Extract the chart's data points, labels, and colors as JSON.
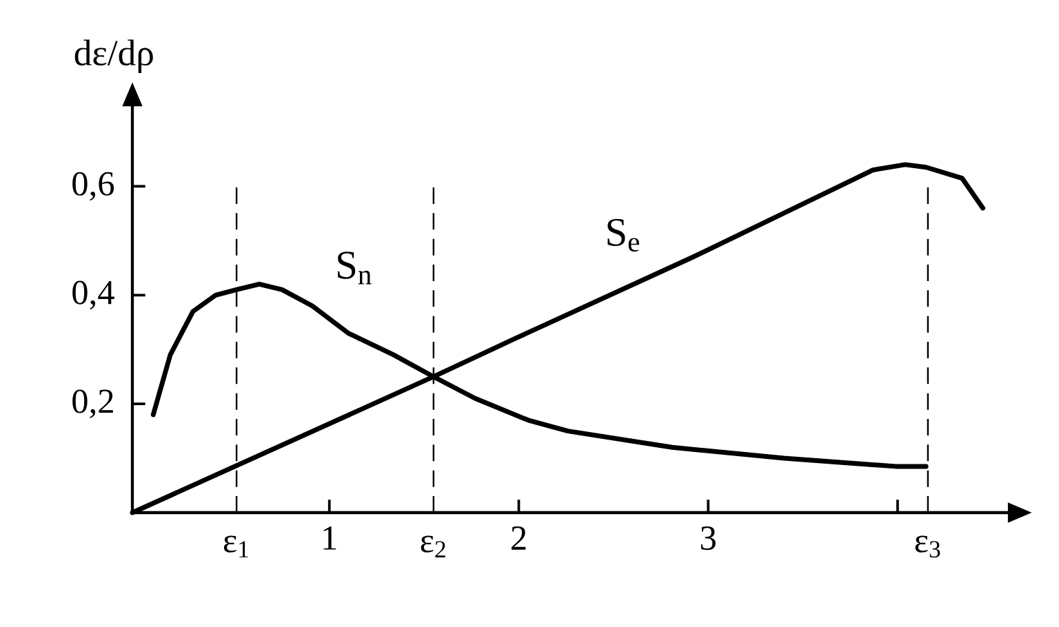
{
  "chart_data": {
    "type": "line",
    "ylabel": "dε/dρ",
    "xlim": [
      -0.04,
      4.59
    ],
    "ylim": [
      0,
      0.75
    ],
    "xticks": [
      1,
      2,
      3,
      {
        "value": 4,
        "label": null
      }
    ],
    "yticks": [
      {
        "value": 0.2,
        "label": "0,2"
      },
      {
        "value": 0.4,
        "label": "0,4"
      },
      {
        "value": 0.6,
        "label": "0,6"
      }
    ],
    "ref_lines": [
      {
        "axis": "x",
        "value": 0.51,
        "label": "ε$_{1}$",
        "line_style": "dashed",
        "color": "#000000"
      },
      {
        "axis": "x",
        "value": 1.55,
        "label": "ε$_{2}$",
        "line_style": "dashed",
        "color": "#000000"
      },
      {
        "axis": "x",
        "value": 4.16,
        "label": "ε$_{3}$",
        "line_style": "dashed",
        "color": "#000000"
      }
    ],
    "marker": "none",
    "line_style": "solid",
    "series": [
      {
        "name": "S$_{n}$",
        "color": "#000000",
        "x": [
          0.07,
          0.16,
          0.28,
          0.4,
          0.51,
          0.63,
          0.75,
          0.91,
          1.1,
          1.34,
          1.55,
          1.77,
          2.05,
          2.26,
          2.81,
          3.4,
          3.99,
          4.15
        ],
        "values": [
          0.18,
          0.29,
          0.37,
          0.4,
          0.41,
          0.42,
          0.41,
          0.38,
          0.33,
          0.29,
          0.25,
          0.21,
          0.17,
          0.15,
          0.12,
          0.1,
          0.085,
          0.085
        ]
      },
      {
        "name": "S$_{e}$",
        "color": "#000000",
        "x": [
          -0.04,
          1.55,
          1.98,
          2.92,
          3.87,
          4.04,
          4.15,
          4.34,
          4.45
        ],
        "values": [
          0,
          0.25,
          0.32,
          0.47,
          0.63,
          0.64,
          0.635,
          0.615,
          0.56
        ]
      }
    ]
  }
}
